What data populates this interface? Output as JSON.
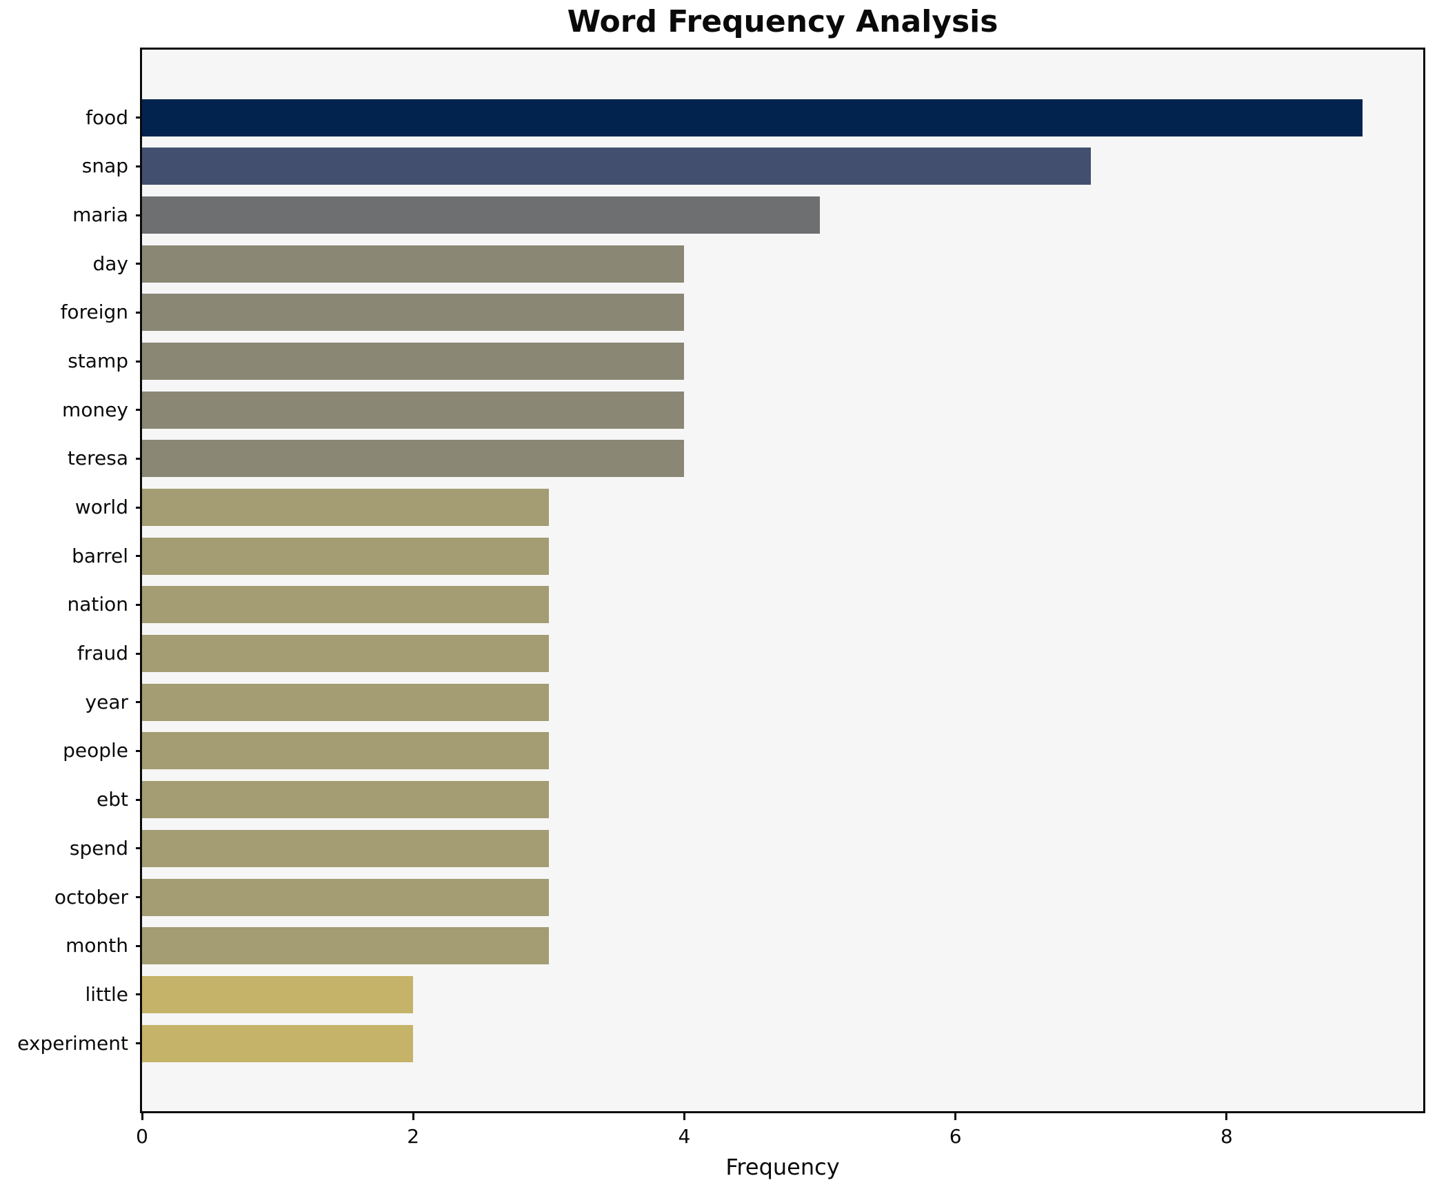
{
  "title": "Word Frequency Analysis",
  "background": {
    "figure": "#ffffff",
    "plot": "#f6f6f7",
    "spine": "#0a0a0a"
  },
  "chart_data": {
    "type": "bar",
    "orientation": "horizontal",
    "title": "Word Frequency Analysis",
    "xlabel": "Frequency",
    "ylabel": "",
    "xlim": [
      0,
      9.45
    ],
    "x_ticks": [
      0,
      2,
      4,
      6,
      8
    ],
    "grid": false,
    "legend": false,
    "categories": [
      "food",
      "snap",
      "maria",
      "day",
      "foreign",
      "stamp",
      "money",
      "teresa",
      "world",
      "barrel",
      "nation",
      "fraud",
      "year",
      "people",
      "ebt",
      "spend",
      "october",
      "month",
      "little",
      "experiment"
    ],
    "values": [
      9,
      7,
      5,
      4,
      4,
      4,
      4,
      4,
      3,
      3,
      3,
      3,
      3,
      3,
      3,
      3,
      3,
      3,
      2,
      2
    ],
    "bar_colors": [
      "#02234e",
      "#424f6e",
      "#6d6f71",
      "#8a8775",
      "#8a8775",
      "#8a8775",
      "#8a8775",
      "#8a8775",
      "#a49c72",
      "#a49c72",
      "#a49c72",
      "#a49c72",
      "#a49c72",
      "#a49c72",
      "#a49c72",
      "#a49c72",
      "#a49c72",
      "#a49c72",
      "#c4b368",
      "#c4b368"
    ]
  }
}
